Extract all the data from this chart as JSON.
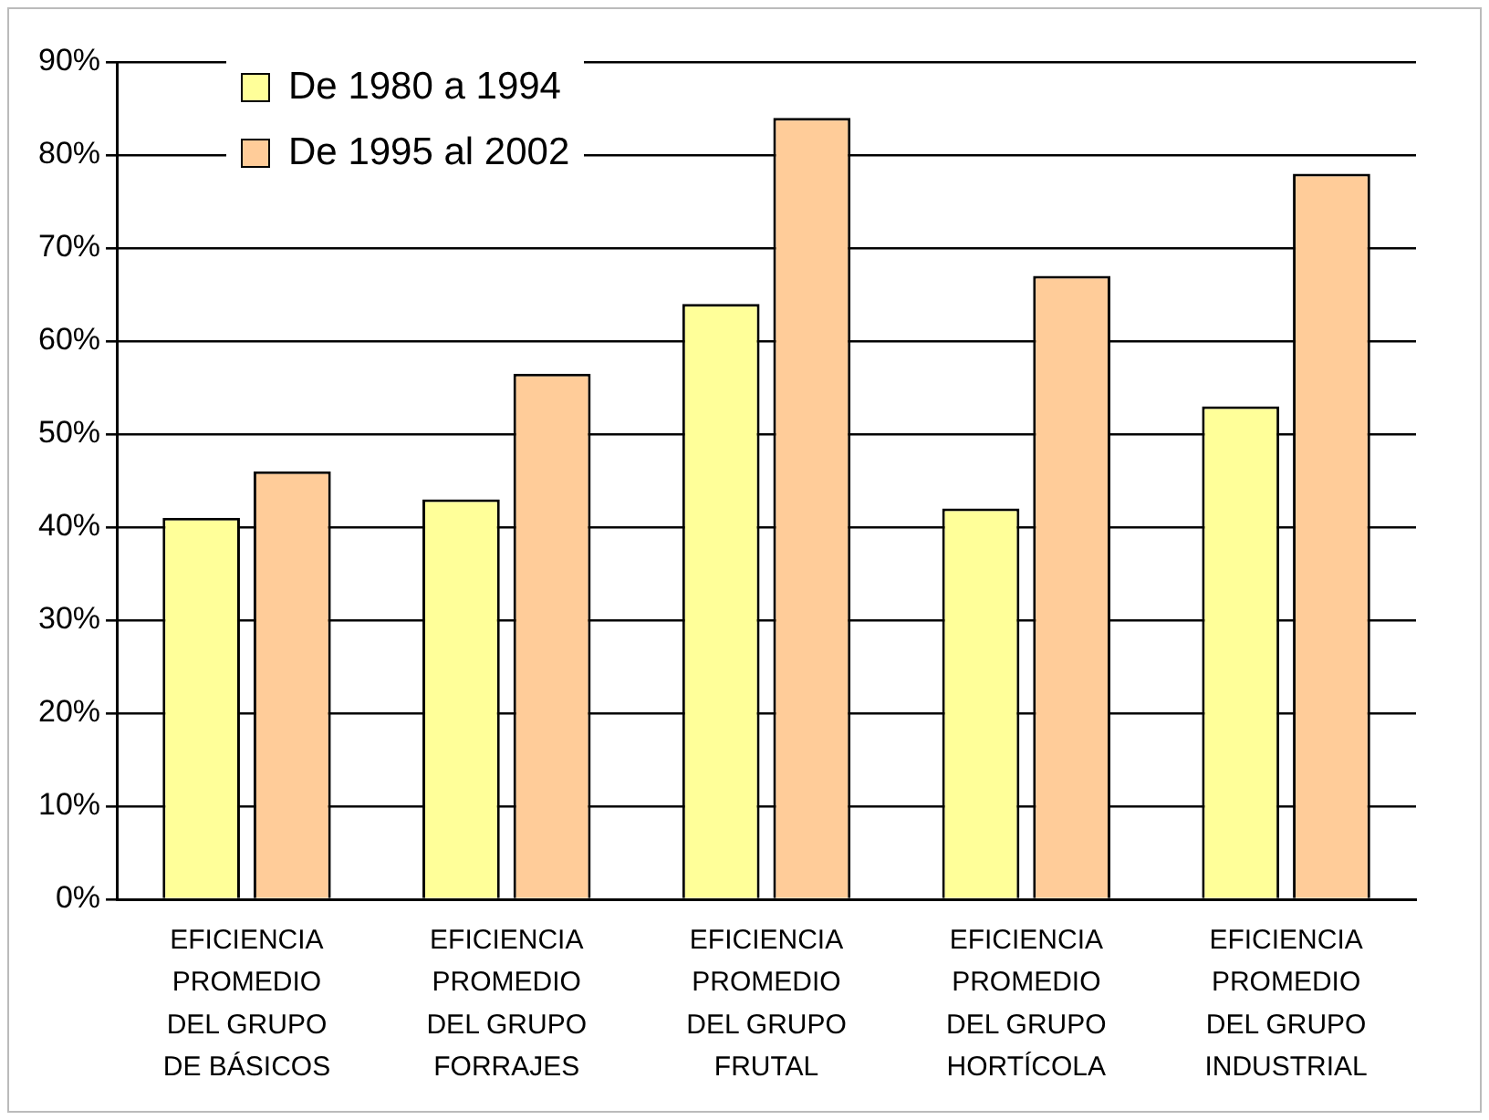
{
  "chart_data": {
    "type": "bar",
    "categories": [
      "EFICIENCIA PROMEDIO DEL GRUPO DE BÁSICOS",
      "EFICIENCIA PROMEDIO DEL GRUPO FORRAJES",
      "EFICIENCIA PROMEDIO DEL GRUPO FRUTAL",
      "EFICIENCIA PROMEDIO DEL GRUPO HORTÍCOLA",
      "EFICIENCIA PROMEDIO DEL GRUPO INDUSTRIAL"
    ],
    "series": [
      {
        "name": "De 1980 a 1994",
        "color": "#ffff99",
        "values": [
          41,
          43,
          64,
          42,
          53
        ]
      },
      {
        "name": "De 1995 al 2002",
        "color": "#ffcc99",
        "values": [
          46,
          56.5,
          84,
          67,
          78
        ]
      }
    ],
    "ylim": [
      0,
      90
    ],
    "yticks": [
      {
        "value": 0,
        "label": "0%"
      },
      {
        "value": 10,
        "label": "10%"
      },
      {
        "value": 20,
        "label": "20%"
      },
      {
        "value": 30,
        "label": "30%"
      },
      {
        "value": 40,
        "label": "40%"
      },
      {
        "value": 50,
        "label": "50%"
      },
      {
        "value": 60,
        "label": "60%"
      },
      {
        "value": 70,
        "label": "70%"
      },
      {
        "value": 80,
        "label": "80%"
      },
      {
        "value": 90,
        "label": "90%"
      }
    ],
    "grid": "y",
    "legend": "top left"
  }
}
